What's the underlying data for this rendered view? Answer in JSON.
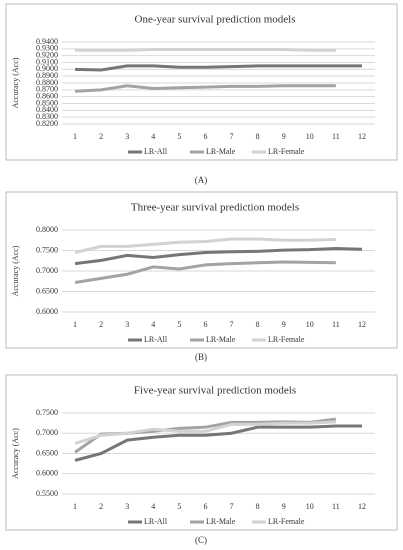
{
  "chart_data": [
    {
      "type": "line",
      "title": "One-year survival prediction models",
      "y_label": "Accuracy (Acc)",
      "caption": "(A)",
      "categories": [
        "1",
        "2",
        "3",
        "4",
        "5",
        "6",
        "7",
        "8",
        "9",
        "10",
        "11",
        "12"
      ],
      "ylim": [
        0.82,
        0.94
      ],
      "yticks": [
        {
          "value": 0.82,
          "label": "0.8200"
        },
        {
          "value": 0.83,
          "label": "0.8300"
        },
        {
          "value": 0.84,
          "label": "0.8400"
        },
        {
          "value": 0.85,
          "label": "0.8500"
        },
        {
          "value": 0.86,
          "label": "0.8600"
        },
        {
          "value": 0.87,
          "label": "0.8700"
        },
        {
          "value": 0.88,
          "label": "0.8800"
        },
        {
          "value": 0.89,
          "label": "0.8900"
        },
        {
          "value": 0.9,
          "label": "0.9000"
        },
        {
          "value": 0.91,
          "label": "0.9100"
        },
        {
          "value": 0.92,
          "label": "0.9200"
        },
        {
          "value": 0.93,
          "label": "0.9300"
        },
        {
          "value": 0.94,
          "label": "0.9400"
        }
      ],
      "grid": true,
      "series": [
        {
          "name": "LR-All",
          "color": "#767676",
          "values": [
            0.9,
            0.899,
            0.905,
            0.905,
            0.903,
            0.903,
            0.904,
            0.905,
            0.905,
            0.905,
            0.905,
            0.905
          ]
        },
        {
          "name": "LR-Male",
          "color": "#a3a3a3",
          "values": [
            0.868,
            0.87,
            0.876,
            0.872,
            0.873,
            0.874,
            0.875,
            0.875,
            0.876,
            0.876,
            0.876,
            null
          ]
        },
        {
          "name": "LR-Female",
          "color": "#d2d2d2",
          "values": [
            0.928,
            0.928,
            0.928,
            0.929,
            0.929,
            0.929,
            0.929,
            0.929,
            0.929,
            0.928,
            0.928,
            null
          ]
        }
      ]
    },
    {
      "type": "line",
      "title": "Three-year survival prediction models",
      "y_label": "Accuracy (Acc)",
      "caption": "(B)",
      "categories": [
        "1",
        "2",
        "3",
        "4",
        "5",
        "6",
        "7",
        "8",
        "9",
        "10",
        "11",
        "12"
      ],
      "ylim": [
        0.6,
        0.8
      ],
      "yticks": [
        {
          "value": 0.6,
          "label": "0.6000"
        },
        {
          "value": 0.65,
          "label": "0.6500"
        },
        {
          "value": 0.7,
          "label": "0.7000"
        },
        {
          "value": 0.75,
          "label": "0.7500"
        },
        {
          "value": 0.8,
          "label": "0.8000"
        }
      ],
      "grid": true,
      "series": [
        {
          "name": "LR-All",
          "color": "#767676",
          "values": [
            0.718,
            0.726,
            0.738,
            0.733,
            0.74,
            0.745,
            0.747,
            0.748,
            0.751,
            0.752,
            0.755,
            0.753
          ]
        },
        {
          "name": "LR-Male",
          "color": "#a3a3a3",
          "values": [
            0.672,
            0.682,
            0.692,
            0.71,
            0.705,
            0.715,
            0.718,
            0.72,
            0.722,
            0.721,
            0.72,
            null
          ]
        },
        {
          "name": "LR-Female",
          "color": "#d2d2d2",
          "values": [
            0.745,
            0.76,
            0.76,
            0.765,
            0.77,
            0.772,
            0.778,
            0.778,
            0.775,
            0.775,
            0.777,
            null
          ]
        }
      ]
    },
    {
      "type": "line",
      "title": "Five-year survival prediction models",
      "y_label": "Accuracy (Acc)",
      "caption": "(C)",
      "categories": [
        "1",
        "2",
        "3",
        "4",
        "5",
        "6",
        "7",
        "8",
        "9",
        "10",
        "11",
        "12"
      ],
      "ylim": [
        0.55,
        0.75
      ],
      "yticks": [
        {
          "value": 0.55,
          "label": "0.5500"
        },
        {
          "value": 0.6,
          "label": "0.6000"
        },
        {
          "value": 0.65,
          "label": "0.6500"
        },
        {
          "value": 0.7,
          "label": "0.7000"
        },
        {
          "value": 0.75,
          "label": "0.7500"
        }
      ],
      "grid": true,
      "series": [
        {
          "name": "LR-All",
          "color": "#767676",
          "values": [
            0.633,
            0.65,
            0.683,
            0.69,
            0.695,
            0.695,
            0.7,
            0.715,
            0.715,
            0.715,
            0.718,
            0.718
          ]
        },
        {
          "name": "LR-Male",
          "color": "#a3a3a3",
          "values": [
            0.653,
            0.698,
            0.7,
            0.705,
            0.712,
            0.715,
            0.727,
            0.727,
            0.728,
            0.727,
            0.735,
            null
          ]
        },
        {
          "name": "LR-Female",
          "color": "#d2d2d2",
          "values": [
            0.675,
            0.695,
            0.7,
            0.71,
            0.705,
            0.705,
            0.722,
            0.722,
            0.725,
            0.725,
            0.728,
            null
          ]
        }
      ]
    }
  ]
}
